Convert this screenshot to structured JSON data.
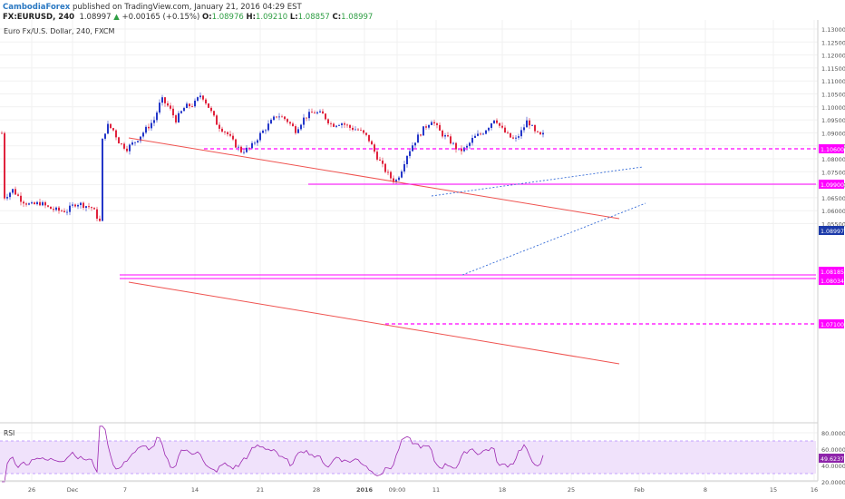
{
  "header": {
    "author": "CambodiaForex",
    "published": "published on TradingView.com, January 21, 2016 04:29 EST",
    "symbol": "FX:EURUSD, 240",
    "last": "1.08997",
    "change": "+0.00165 (+0.15%)",
    "o_label": "O:",
    "o_value": "1.08976",
    "h_label": "H:",
    "h_value": "1.09210",
    "l_label": "L:",
    "l_value": "1.08857",
    "c_label": "C:",
    "c_value": "1.08997",
    "instrument": "Euro Fx/U.S. Dollar, 240, FXCM"
  },
  "colors": {
    "up": "#2437c9",
    "down": "#e0233d",
    "trend": "#ef5350",
    "level": "#ff00ff",
    "wedge": "#3a6fd8",
    "rsi": "#9c27b0",
    "rsi_band": "#f0e2fb",
    "last_price": "#1c3aa9",
    "rsi_badge": "#8e24aa"
  },
  "chart_data": {
    "type": "candlestick",
    "xlabels": [
      "26",
      "Dec",
      "7",
      "14",
      "21",
      "28",
      "2016",
      "09:00",
      "11",
      "18",
      "25",
      "Feb",
      "8",
      "15",
      "16"
    ],
    "ylim": [
      1.052,
      1.133
    ],
    "yticks": [
      "1.13000",
      "1.12500",
      "1.12000",
      "1.11500",
      "1.11000",
      "1.10500",
      "1.10000",
      "1.09500",
      "1.09000",
      "1.08500",
      "1.08000",
      "1.07500",
      "1.07000",
      "1.06500",
      "1.06000",
      "1.05500"
    ],
    "horizontal_levels": [
      {
        "label": "1.10600",
        "style": "dashed"
      },
      {
        "label": "1.09900",
        "style": "solid"
      },
      {
        "label": "1.08185",
        "style": "solid"
      },
      {
        "label": "1.08034",
        "style": "solid"
      },
      {
        "label": "1.07100",
        "style": "dashed"
      }
    ],
    "last_price_label": "1.08997",
    "rsi": {
      "label": "RSI",
      "ylim": [
        15,
        95
      ],
      "yticks": [
        "80.0000",
        "60.0000",
        "40.0000",
        "20.0000"
      ],
      "band": [
        30,
        70
      ],
      "last_label": "49.6237"
    }
  }
}
